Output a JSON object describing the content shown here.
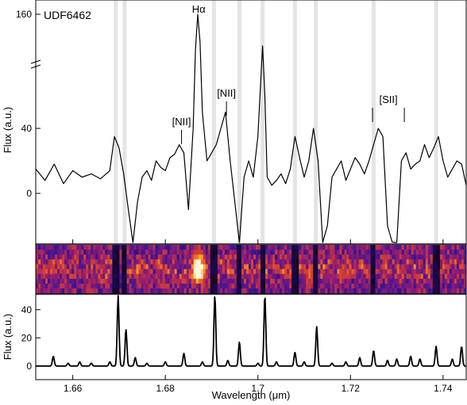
{
  "chart_data": [
    {
      "type": "line",
      "panel": "spectrum",
      "object_label": "UDF6462",
      "ylabel": "Flux (a.u.)",
      "xlim": [
        1.652,
        1.745
      ],
      "axis_break": true,
      "ytick_values": [
        0,
        40,
        160
      ],
      "ytick_labels": [
        "0",
        "40",
        "160"
      ],
      "skyline_color": "#e4e4e4",
      "skylines": [
        1.6693,
        1.6712,
        1.6905,
        1.696,
        1.701,
        1.708,
        1.7125,
        1.725,
        1.7385
      ],
      "series": [
        {
          "x": [
            1.652,
            1.654,
            1.656,
            1.658,
            1.66,
            1.662,
            1.664,
            1.666,
            1.668,
            1.669,
            1.67,
            1.671,
            1.672,
            1.673,
            1.674,
            1.675,
            1.676,
            1.677,
            1.678,
            1.679,
            1.68,
            1.681,
            1.682,
            1.683,
            1.684,
            1.685,
            1.686,
            1.6865,
            1.687,
            1.6875,
            1.688,
            1.689,
            1.69,
            1.691,
            1.692,
            1.693,
            1.694,
            1.695,
            1.696,
            1.697,
            1.698,
            1.699,
            1.7,
            1.701,
            1.7015,
            1.702,
            1.703,
            1.704,
            1.705,
            1.706,
            1.707,
            1.708,
            1.709,
            1.71,
            1.711,
            1.712,
            1.713,
            1.714,
            1.715,
            1.716,
            1.717,
            1.718,
            1.719,
            1.72,
            1.721,
            1.722,
            1.723,
            1.724,
            1.725,
            1.726,
            1.727,
            1.728,
            1.729,
            1.73,
            1.731,
            1.732,
            1.733,
            1.734,
            1.735,
            1.736,
            1.737,
            1.738,
            1.739,
            1.74,
            1.741,
            1.742,
            1.743,
            1.744,
            1.745
          ],
          "y": [
            15,
            8,
            18,
            6,
            14,
            10,
            12,
            9,
            14,
            35,
            28,
            12,
            -10,
            -48,
            -5,
            10,
            14,
            8,
            20,
            16,
            14,
            22,
            24,
            30,
            25,
            -10,
            40,
            110,
            160,
            120,
            50,
            20,
            25,
            30,
            40,
            50,
            20,
            -5,
            -40,
            10,
            20,
            10,
            35,
            115,
            60,
            10,
            5,
            8,
            12,
            6,
            15,
            35,
            22,
            10,
            20,
            40,
            20,
            -70,
            -20,
            10,
            15,
            20,
            8,
            15,
            22,
            18,
            12,
            20,
            30,
            40,
            35,
            -20,
            -30,
            -60,
            20,
            25,
            15,
            18,
            20,
            30,
            22,
            28,
            35,
            20,
            10,
            15,
            20,
            18,
            5
          ]
        }
      ]
    },
    {
      "type": "heatmap",
      "panel": "2D spectrum"
    },
    {
      "type": "line",
      "panel": "sky",
      "xlabel": "Wavelength (μm)",
      "ylabel": "Flux (a.u.)",
      "xlim": [
        1.652,
        1.745
      ],
      "ylim": [
        -8,
        50
      ],
      "xtick_values": [
        1.66,
        1.68,
        1.7,
        1.72,
        1.74
      ],
      "xtick_labels": [
        "1.66",
        "1.68",
        "1.7",
        "1.72",
        "1.74"
      ],
      "ytick_values": [
        0,
        20,
        40
      ],
      "ytick_labels": [
        "0",
        "20",
        "40"
      ],
      "series": [
        {
          "x": [
            1.6558,
            1.659,
            1.6615,
            1.664,
            1.668,
            1.6698,
            1.6715,
            1.6735,
            1.676,
            1.68,
            1.684,
            1.688,
            1.6907,
            1.6935,
            1.696,
            1.7,
            1.7015,
            1.704,
            1.708,
            1.71,
            1.7127,
            1.716,
            1.719,
            1.722,
            1.725,
            1.728,
            1.73,
            1.733,
            1.735,
            1.7385,
            1.742,
            1.744
          ],
          "y": [
            7,
            2,
            3,
            2,
            3,
            50,
            26,
            6,
            2,
            3,
            9,
            3,
            50,
            4,
            17,
            2,
            50,
            3,
            10,
            3,
            28,
            2,
            3,
            6,
            11,
            4,
            5,
            7,
            5,
            14,
            5,
            14
          ]
        }
      ]
    }
  ],
  "annotations": [
    {
      "text": "Hα",
      "x": 1.6872
    },
    {
      "text": "[NII]",
      "x": 1.6835
    },
    {
      "text": "[NII]",
      "x": 1.6932
    },
    {
      "text": "[SII]",
      "x": 1.7282
    }
  ]
}
